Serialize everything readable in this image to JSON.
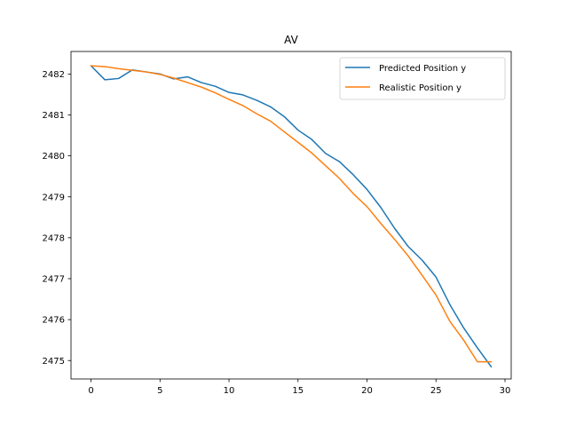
{
  "chart_data": {
    "type": "line",
    "title": "AV",
    "xlabel": "",
    "ylabel": "",
    "xlim": [
      -1.45,
      30.45
    ],
    "ylim": [
      2474.55,
      2482.55
    ],
    "xticks": [
      0,
      5,
      10,
      15,
      20,
      25,
      30
    ],
    "yticks": [
      2475,
      2476,
      2477,
      2478,
      2479,
      2480,
      2481,
      2482
    ],
    "grid": false,
    "legend": {
      "placement": "top-right"
    },
    "x": [
      0,
      1,
      2,
      3,
      4,
      5,
      6,
      7,
      8,
      9,
      10,
      11,
      12,
      13,
      14,
      15,
      16,
      17,
      18,
      19,
      20,
      21,
      22,
      23,
      24,
      25,
      26,
      27,
      28,
      29
    ],
    "series": [
      {
        "name": "Predicted Position y",
        "color": "#1f77b4",
        "values": [
          2482.2,
          2481.86,
          2481.89,
          2482.1,
          2482.05,
          2482.0,
          2481.88,
          2481.93,
          2481.79,
          2481.7,
          2481.55,
          2481.49,
          2481.36,
          2481.2,
          2480.96,
          2480.63,
          2480.4,
          2480.06,
          2479.86,
          2479.54,
          2479.18,
          2478.74,
          2478.23,
          2477.78,
          2477.45,
          2477.04,
          2476.37,
          2475.8,
          2475.31,
          2474.85
        ]
      },
      {
        "name": "Realistic Position y",
        "color": "#ff7f0e",
        "values": [
          2482.2,
          2482.18,
          2482.13,
          2482.09,
          2482.05,
          2481.99,
          2481.9,
          2481.79,
          2481.68,
          2481.54,
          2481.38,
          2481.23,
          2481.03,
          2480.85,
          2480.59,
          2480.33,
          2480.07,
          2479.76,
          2479.45,
          2479.08,
          2478.76,
          2478.35,
          2477.96,
          2477.55,
          2477.08,
          2476.6,
          2475.96,
          2475.5,
          2474.97,
          2474.97
        ]
      }
    ]
  }
}
